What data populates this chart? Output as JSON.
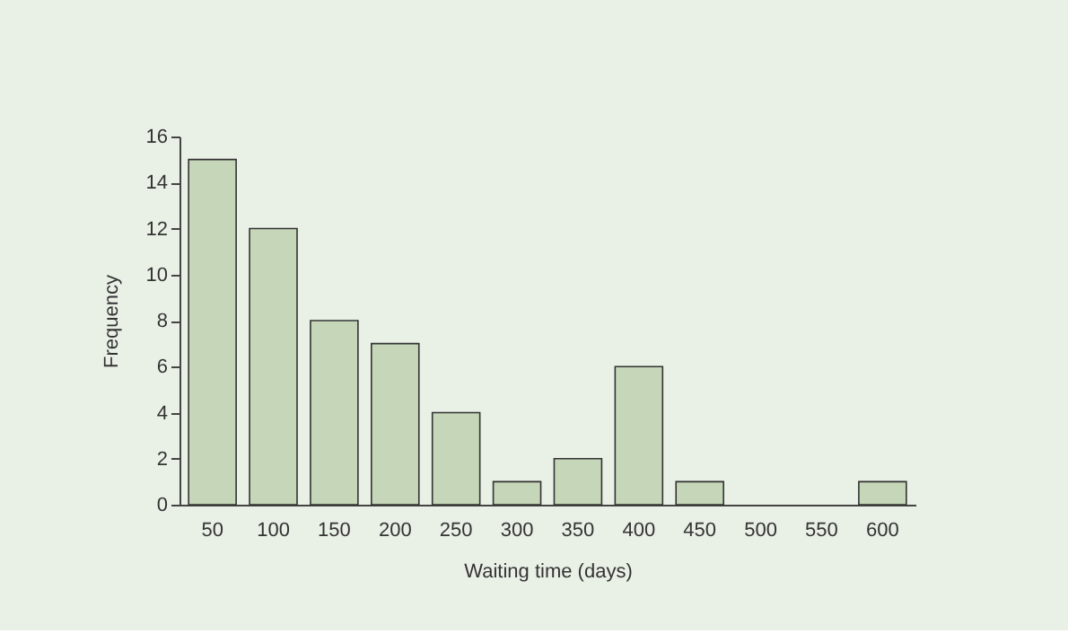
{
  "chart_data": {
    "type": "bar",
    "xlabel": "Waiting time (days)",
    "ylabel": "Frequency",
    "categories": [
      "50",
      "100",
      "150",
      "200",
      "250",
      "300",
      "350",
      "400",
      "450",
      "500",
      "550",
      "600"
    ],
    "values": [
      15,
      12,
      8,
      7,
      4,
      1,
      2,
      6,
      1,
      0,
      0,
      1
    ],
    "color": "#c6d6b8",
    "ylim": [
      0,
      16
    ],
    "yticks": [
      0,
      2,
      4,
      6,
      8,
      10,
      12,
      14,
      16
    ],
    "grid": false
  }
}
